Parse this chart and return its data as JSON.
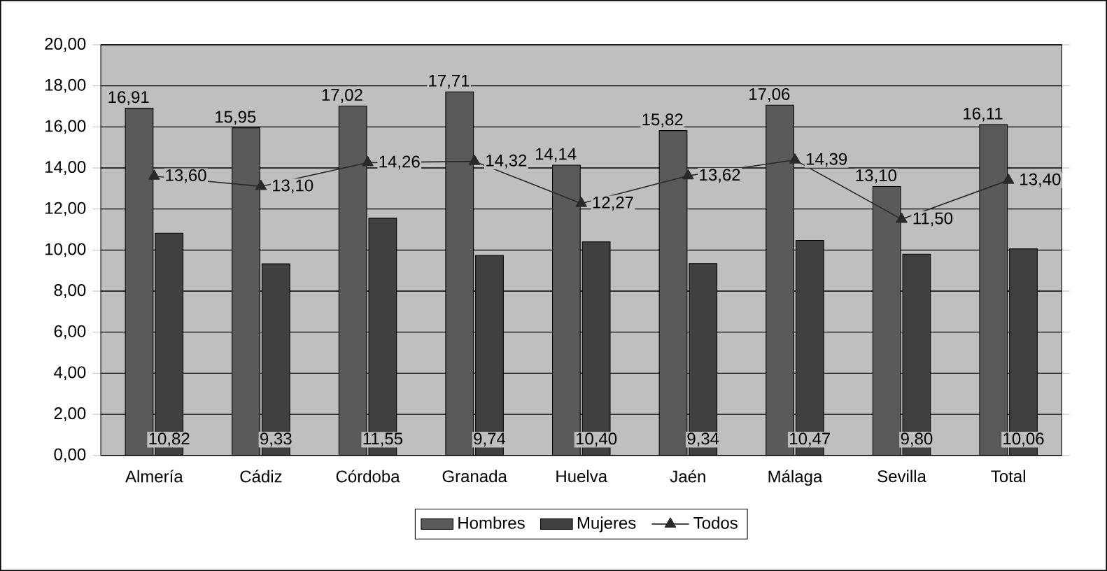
{
  "chart_data": {
    "type": "bar",
    "categories": [
      "Almería",
      "Cádiz",
      "Córdoba",
      "Granada",
      "Huelva",
      "Jaén",
      "Málaga",
      "Sevilla",
      "Total"
    ],
    "series": [
      {
        "name": "Hombres",
        "color": "#5a5a5a",
        "values": [
          16.91,
          15.95,
          17.02,
          17.71,
          14.14,
          15.82,
          17.06,
          13.1,
          16.11
        ],
        "value_labels": [
          "16,91",
          "15,95",
          "17,02",
          "17,71",
          "14,14",
          "15,82",
          "17,06",
          "13,10",
          "16,11"
        ]
      },
      {
        "name": "Mujeres",
        "color": "#404040",
        "values": [
          10.82,
          9.33,
          11.55,
          9.74,
          10.4,
          9.34,
          10.47,
          9.8,
          10.06
        ],
        "value_labels": [
          "10,82",
          "9,33",
          "11,55",
          "9,74",
          "10,40",
          "9,34",
          "10,47",
          "9,80",
          "10,06"
        ]
      },
      {
        "name": "Todos",
        "type": "line",
        "color": "#2a2a2a",
        "marker": "triangle",
        "values": [
          13.6,
          13.1,
          14.26,
          14.32,
          12.27,
          13.62,
          14.39,
          11.5,
          13.4
        ],
        "value_labels": [
          "13,60",
          "13,10",
          "14,26",
          "14,32",
          "12,27",
          "13,62",
          "14,39",
          "11,50",
          "13,40"
        ]
      }
    ],
    "ylim": [
      0,
      20
    ],
    "yticks": [
      {
        "value": 0,
        "label": "0,00"
      },
      {
        "value": 2,
        "label": "2,00"
      },
      {
        "value": 4,
        "label": "4,00"
      },
      {
        "value": 6,
        "label": "6,00"
      },
      {
        "value": 8,
        "label": "8,00"
      },
      {
        "value": 10,
        "label": "10,00"
      },
      {
        "value": 12,
        "label": "12,00"
      },
      {
        "value": 14,
        "label": "14,00"
      },
      {
        "value": 16,
        "label": "16,00"
      },
      {
        "value": 18,
        "label": "18,00"
      },
      {
        "value": 20,
        "label": "20,00"
      }
    ],
    "grid": "y",
    "legend": "bottom"
  }
}
